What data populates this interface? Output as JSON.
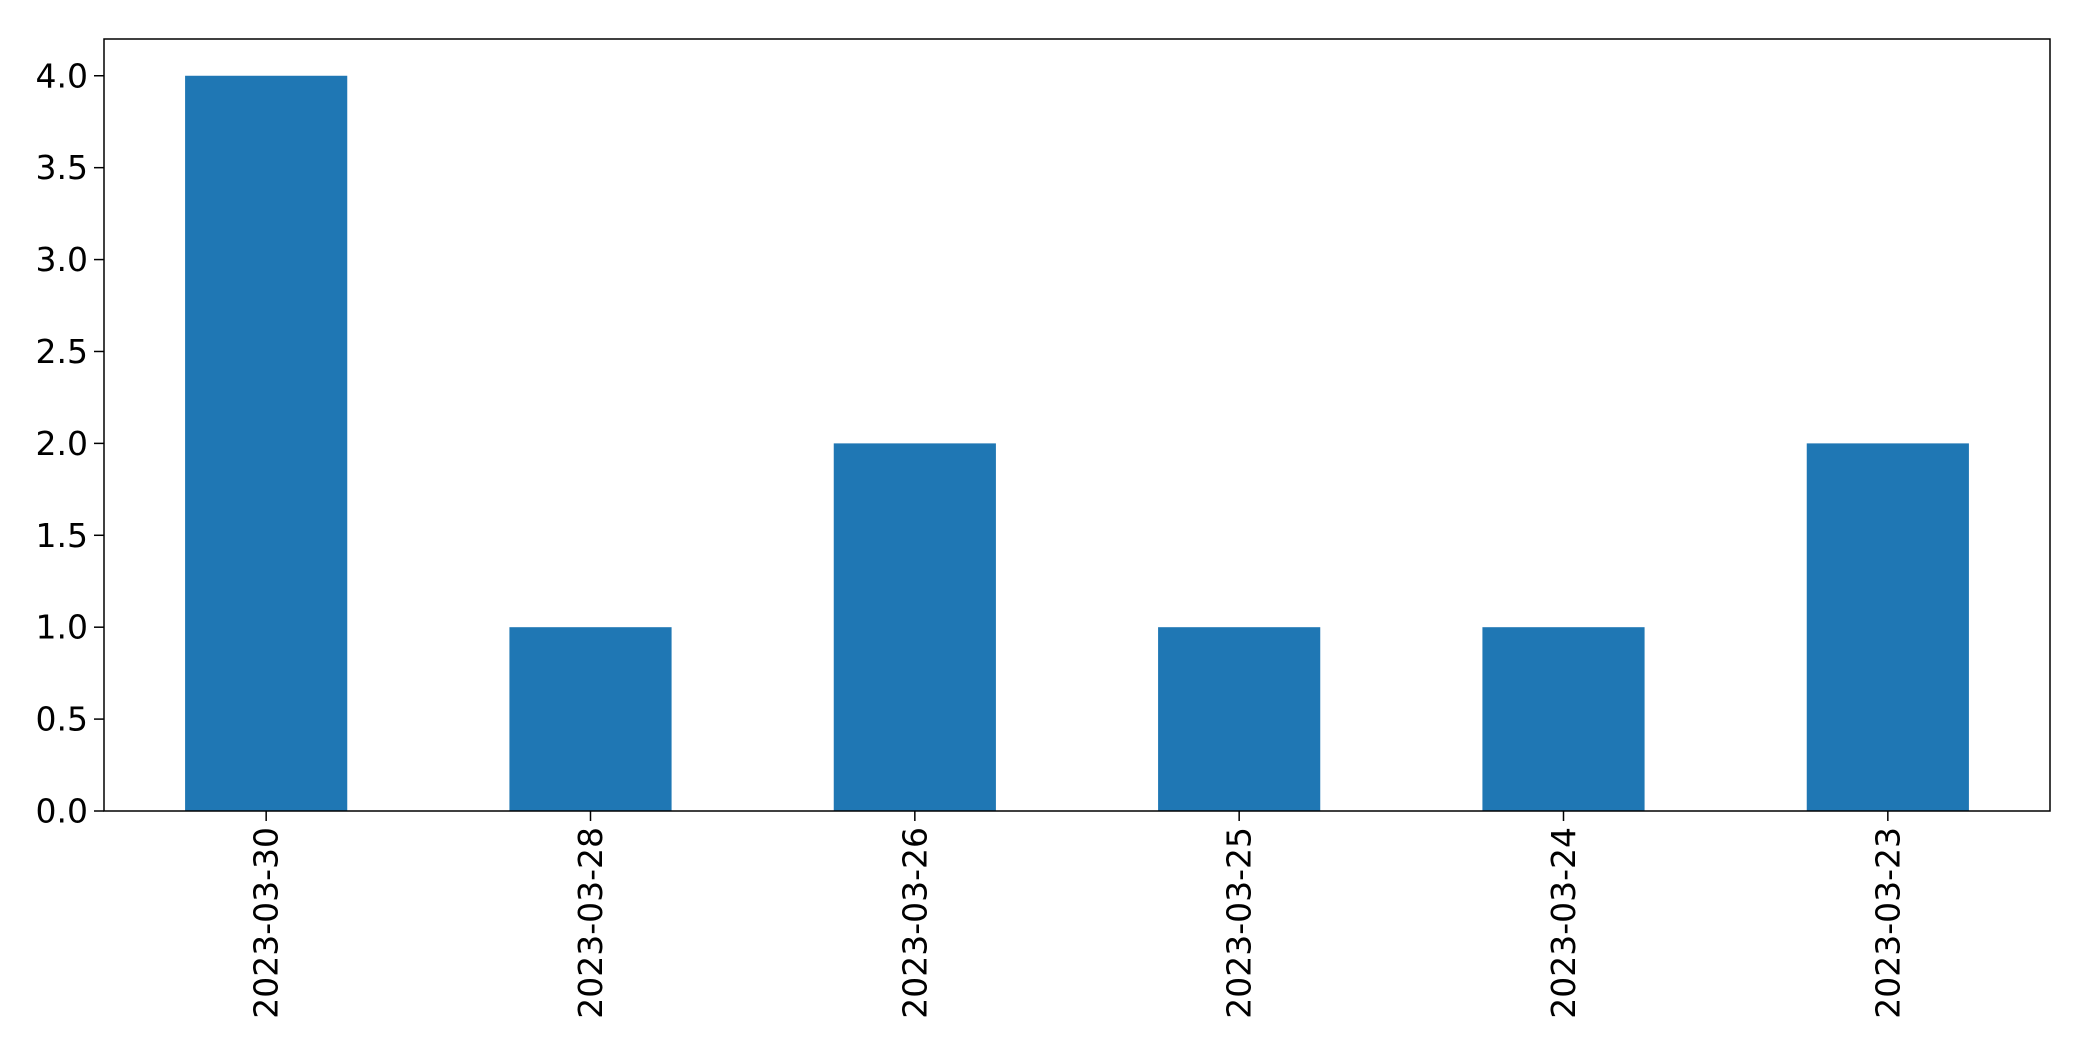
{
  "chart_data": {
    "type": "bar",
    "categories": [
      "2023-03-30",
      "2023-03-28",
      "2023-03-26",
      "2023-03-25",
      "2023-03-24",
      "2023-03-23"
    ],
    "values": [
      4,
      1,
      2,
      1,
      1,
      2
    ],
    "title": "",
    "xlabel": "",
    "ylabel": "",
    "ylim": [
      0,
      4.2
    ],
    "yticks": [
      "0.0",
      "0.5",
      "1.0",
      "1.5",
      "2.0",
      "2.5",
      "3.0",
      "3.5",
      "4.0"
    ],
    "grid": false,
    "bar_color": "#1f77b4",
    "x_tick_rotation": "vertical"
  }
}
